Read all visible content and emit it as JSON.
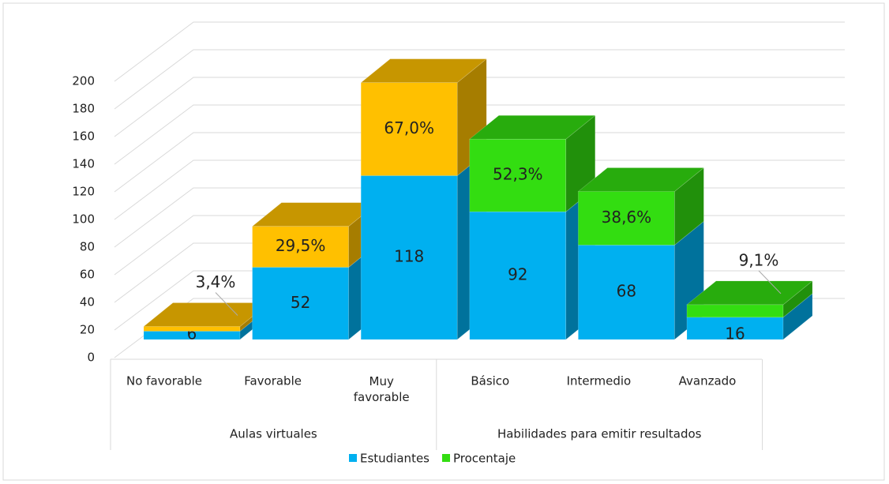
{
  "chart_data": {
    "type": "bar3d_stacked",
    "groups": [
      {
        "name": "Aulas virtuales",
        "categories": [
          "No favorable",
          "Favorable",
          "Muy favorable"
        ]
      },
      {
        "name": "Habilidades para emitir resultados",
        "categories": [
          "Básico",
          "Intermedio",
          "Avanzado"
        ]
      }
    ],
    "series": [
      {
        "name": "Estudiantes",
        "color": "#00b0f0",
        "values": [
          6,
          52,
          118,
          92,
          68,
          16
        ]
      },
      {
        "name": "Procentaje",
        "color": "#33dd11",
        "colors": [
          "#ffc000",
          "#ffc000",
          "#ffc000",
          "#33dd11",
          "#33dd11",
          "#33dd11"
        ],
        "values": [
          3.4,
          29.5,
          67.0,
          52.3,
          38.6,
          9.1
        ],
        "value_labels": [
          "3,4%",
          "29,5%",
          "67,0%",
          "52,3%",
          "38,6%",
          "9,1%"
        ]
      }
    ],
    "ylim": [
      0,
      200
    ],
    "yticks": [
      0,
      20,
      40,
      60,
      80,
      100,
      120,
      140,
      160,
      180,
      200
    ],
    "grid": true,
    "legend": "bottom"
  }
}
